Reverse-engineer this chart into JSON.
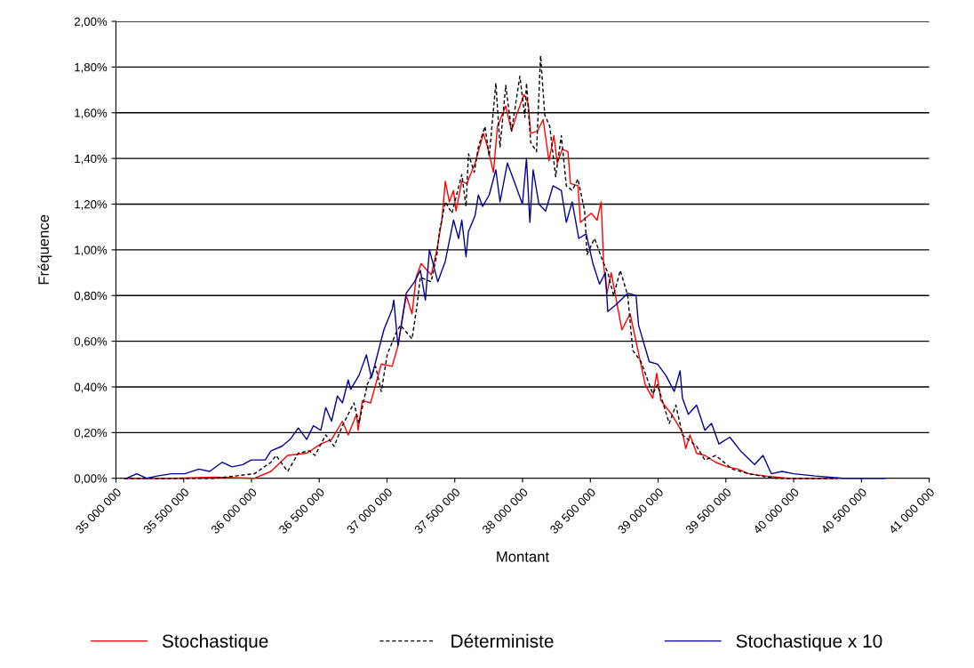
{
  "chart_data": {
    "type": "line",
    "xlabel": "Montant",
    "ylabel": "Fréquence",
    "xlim": [
      35000000,
      41000000
    ],
    "xticks": [
      {
        "value": 35000000,
        "label": "35 000 000"
      },
      {
        "value": 35500000,
        "label": "35 500 000"
      },
      {
        "value": 36000000,
        "label": "36 000 000"
      },
      {
        "value": 36500000,
        "label": "36 500 000"
      },
      {
        "value": 37000000,
        "label": "37 000 000"
      },
      {
        "value": 37500000,
        "label": "37 500 000"
      },
      {
        "value": 38000000,
        "label": "38 000 000"
      },
      {
        "value": 38500000,
        "label": "38 500 000"
      },
      {
        "value": 39000000,
        "label": "39 000 000"
      },
      {
        "value": 39500000,
        "label": "39 500 000"
      },
      {
        "value": 40000000,
        "label": "40 000 000"
      },
      {
        "value": 40500000,
        "label": "40 500 000"
      },
      {
        "value": 41000000,
        "label": "41 000 000"
      }
    ],
    "ylim": [
      0,
      2
    ],
    "yticks": [
      {
        "value": 0,
        "label": "0,00%"
      },
      {
        "value": 0.2,
        "label": "0,20%"
      },
      {
        "value": 0.4,
        "label": "0,40%"
      },
      {
        "value": 0.6,
        "label": "0,60%"
      },
      {
        "value": 0.8,
        "label": "0,80%"
      },
      {
        "value": 1.0,
        "label": "1,00%"
      },
      {
        "value": 1.2,
        "label": "1,20%"
      },
      {
        "value": 1.4,
        "label": "1,40%"
      },
      {
        "value": 1.6,
        "label": "1,60%"
      },
      {
        "value": 1.8,
        "label": "1,80%"
      },
      {
        "value": 2.0,
        "label": "2,00%"
      }
    ],
    "grid": "y",
    "legend": "bottom",
    "marker": "none",
    "series": [
      {
        "name": "Stochastique",
        "color": "#ff0000",
        "line_style": "solid",
        "x": [
          35061000,
          35428000,
          35734000,
          36022000,
          36144000,
          36267000,
          36408000,
          36512000,
          36591000,
          36671000,
          36714000,
          36775000,
          36787000,
          36818000,
          36879000,
          36958000,
          37038000,
          37081000,
          37142000,
          37185000,
          37215000,
          37252000,
          37326000,
          37368000,
          37405000,
          37430000,
          37460000,
          37491000,
          37509000,
          37552000,
          37589000,
          37650000,
          37693000,
          37711000,
          37742000,
          37785000,
          37815000,
          37876000,
          37919000,
          37956000,
          38011000,
          38042000,
          38060000,
          38109000,
          38152000,
          38195000,
          38231000,
          38256000,
          38293000,
          38335000,
          38354000,
          38409000,
          38427000,
          38507000,
          38550000,
          38580000,
          38599000,
          38623000,
          38654000,
          38733000,
          38794000,
          38837000,
          38905000,
          38960000,
          38990000,
          39021000,
          39100000,
          39180000,
          39204000,
          39235000,
          39284000,
          39345000,
          39425000,
          39510000,
          39590000,
          39670000,
          39792000,
          39957000,
          40324000
        ],
        "values": [
          0,
          0,
          0.005,
          0,
          0.03,
          0.1,
          0.11,
          0.15,
          0.17,
          0.25,
          0.19,
          0.28,
          0.21,
          0.34,
          0.33,
          0.5,
          0.49,
          0.58,
          0.8,
          0.72,
          0.88,
          0.94,
          0.89,
          1.0,
          1.13,
          1.3,
          1.21,
          1.26,
          1.17,
          1.3,
          1.29,
          1.38,
          1.47,
          1.51,
          1.45,
          1.34,
          1.54,
          1.63,
          1.52,
          1.59,
          1.68,
          1.64,
          1.51,
          1.52,
          1.57,
          1.39,
          1.5,
          1.38,
          1.44,
          1.43,
          1.29,
          1.28,
          1.12,
          1.16,
          1.13,
          1.21,
          0.93,
          0.81,
          0.9,
          0.65,
          0.72,
          0.6,
          0.41,
          0.35,
          0.46,
          0.34,
          0.28,
          0.2,
          0.13,
          0.19,
          0.11,
          0.1,
          0.07,
          0.05,
          0.04,
          0.02,
          0.01,
          0,
          0
        ]
      },
      {
        "name": "Déterministe",
        "color": "#000000",
        "line_style": "dashed",
        "x": [
          35061000,
          35428000,
          35734000,
          36022000,
          36144000,
          36181000,
          36267000,
          36346000,
          36426000,
          36469000,
          36548000,
          36610000,
          36671000,
          36756000,
          36793000,
          36854000,
          36916000,
          36958000,
          37001000,
          37062000,
          37099000,
          37185000,
          37222000,
          37246000,
          37326000,
          37368000,
          37387000,
          37430000,
          37479000,
          37552000,
          37583000,
          37601000,
          37644000,
          37674000,
          37723000,
          37754000,
          37803000,
          37834000,
          37876000,
          37919000,
          37980000,
          38017000,
          38029000,
          38060000,
          38103000,
          38133000,
          38164000,
          38201000,
          38244000,
          38286000,
          38323000,
          38366000,
          38409000,
          38458000,
          38476000,
          38531000,
          38592000,
          38629000,
          38672000,
          38721000,
          38776000,
          38813000,
          38874000,
          38960000,
          38996000,
          39082000,
          39131000,
          39180000,
          39284000,
          39345000,
          39425000,
          39547000,
          39670000,
          39755000,
          39878000,
          40000000,
          40324000
        ],
        "values": [
          0,
          0,
          0,
          0.02,
          0.07,
          0.1,
          0.03,
          0.11,
          0.12,
          0.1,
          0.19,
          0.14,
          0.23,
          0.33,
          0.24,
          0.41,
          0.49,
          0.38,
          0.54,
          0.63,
          0.67,
          0.61,
          0.76,
          0.88,
          0.86,
          0.98,
          1.08,
          1.21,
          1.16,
          1.33,
          1.19,
          1.42,
          1.34,
          1.45,
          1.54,
          1.41,
          1.73,
          1.45,
          1.72,
          1.52,
          1.76,
          1.58,
          1.73,
          1.47,
          1.43,
          1.85,
          1.59,
          1.54,
          1.32,
          1.5,
          1.28,
          1.26,
          1.31,
          1.17,
          0.98,
          1.05,
          0.95,
          0.9,
          0.8,
          0.91,
          0.8,
          0.56,
          0.51,
          0.37,
          0.41,
          0.24,
          0.32,
          0.19,
          0.14,
          0.08,
          0.1,
          0.04,
          0.02,
          0.01,
          0,
          0,
          0
        ]
      },
      {
        "name": "Stochastique x 10",
        "color": "#000099",
        "line_style": "solid",
        "x": [
          35080000,
          35153000,
          35226000,
          35306000,
          35410000,
          35508000,
          35612000,
          35692000,
          35783000,
          35857000,
          35936000,
          35998000,
          36102000,
          36144000,
          36224000,
          36285000,
          36346000,
          36408000,
          36457000,
          36512000,
          36548000,
          36591000,
          36634000,
          36671000,
          36714000,
          36732000,
          36793000,
          36848000,
          36885000,
          36916000,
          36977000,
          37038000,
          37050000,
          37081000,
          37142000,
          37203000,
          37246000,
          37283000,
          37313000,
          37375000,
          37430000,
          37491000,
          37528000,
          37552000,
          37583000,
          37601000,
          37650000,
          37674000,
          37705000,
          37754000,
          37803000,
          37834000,
          37888000,
          37938000,
          37999000,
          38029000,
          38054000,
          38078000,
          38121000,
          38170000,
          38225000,
          38286000,
          38323000,
          38366000,
          38415000,
          38470000,
          38519000,
          38568000,
          38611000,
          38629000,
          38690000,
          38776000,
          38837000,
          38856000,
          38935000,
          38996000,
          39058000,
          39119000,
          39162000,
          39180000,
          39223000,
          39284000,
          39345000,
          39394000,
          39449000,
          39529000,
          39608000,
          39712000,
          39774000,
          39835000,
          39914000,
          40000000,
          40159000,
          40367000,
          40673000
        ],
        "values": [
          0,
          0.02,
          0,
          0.01,
          0.02,
          0.02,
          0.04,
          0.03,
          0.07,
          0.05,
          0.06,
          0.08,
          0.08,
          0.12,
          0.14,
          0.17,
          0.22,
          0.17,
          0.23,
          0.21,
          0.31,
          0.25,
          0.36,
          0.33,
          0.43,
          0.39,
          0.45,
          0.54,
          0.44,
          0.51,
          0.65,
          0.74,
          0.78,
          0.58,
          0.81,
          0.86,
          0.91,
          0.78,
          1.0,
          0.86,
          0.95,
          1.13,
          1.05,
          1.13,
          0.97,
          1.08,
          1.15,
          1.24,
          1.19,
          1.24,
          1.35,
          1.21,
          1.38,
          1.3,
          1.2,
          1.4,
          1.12,
          1.35,
          1.2,
          1.17,
          1.28,
          1.26,
          1.12,
          1.21,
          1.05,
          1.07,
          0.94,
          0.85,
          0.9,
          0.73,
          0.76,
          0.81,
          0.8,
          0.67,
          0.51,
          0.5,
          0.45,
          0.38,
          0.47,
          0.35,
          0.28,
          0.32,
          0.21,
          0.24,
          0.15,
          0.18,
          0.12,
          0.06,
          0.1,
          0.02,
          0.03,
          0.02,
          0.01,
          0,
          0
        ]
      }
    ]
  }
}
